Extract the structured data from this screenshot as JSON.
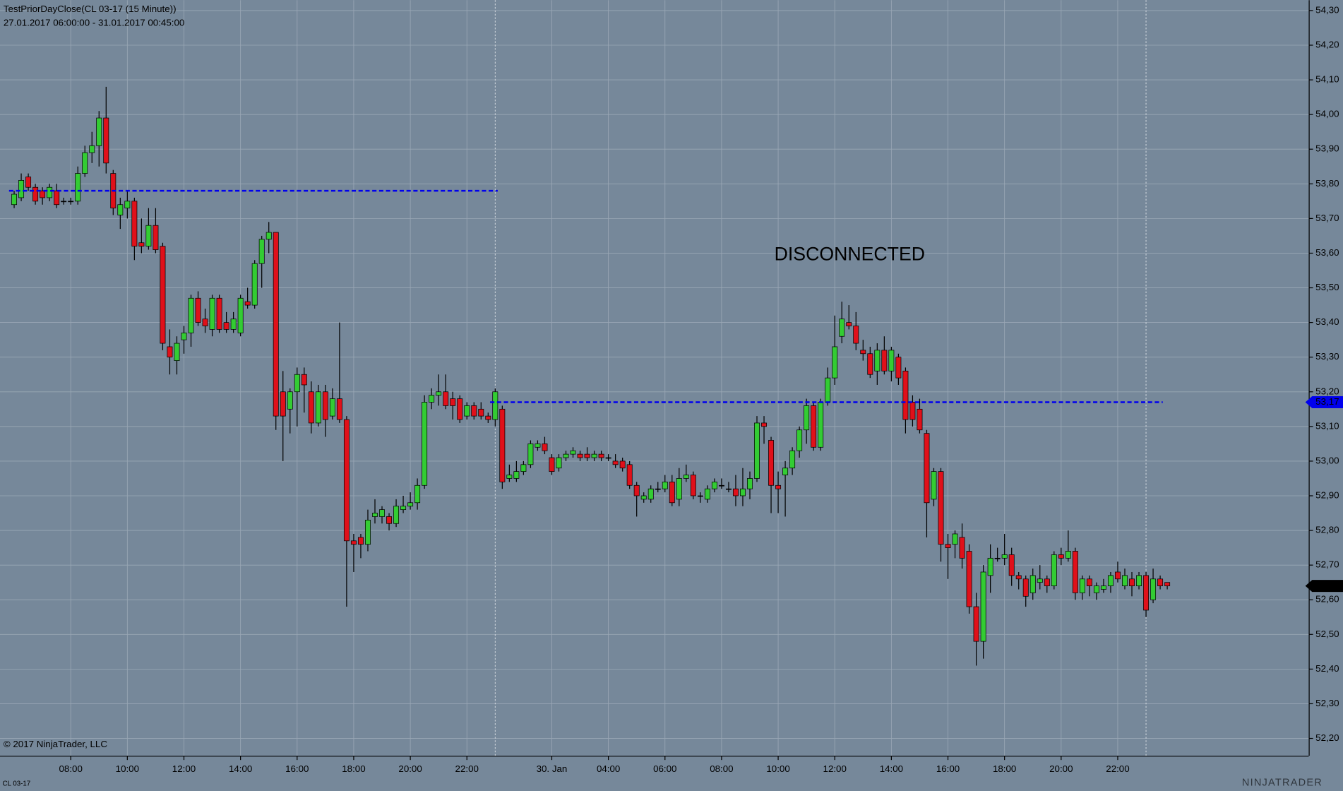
{
  "chart_data": {
    "type": "candlestick",
    "title": "TestPriorDayClose(CL 03-17 (15 Minute))",
    "subtitle": "27.01.2017 06:00:00 - 31.01.2017 00:45:00",
    "annotation": "DISCONNECTED",
    "copyright": "© 2017 NinjaTrader, LLC",
    "instrument": "CL 03-17",
    "logo": "NINJATRADER",
    "up_color": "#33cc33",
    "down_color": "#e0101a",
    "grid": true,
    "open": [
      53.74,
      53.76,
      53.82,
      53.79,
      53.78,
      53.76,
      53.78,
      53.75,
      53.75,
      53.75,
      53.83,
      53.89,
      53.91,
      53.99,
      53.83,
      53.71,
      53.73,
      53.75,
      53.63,
      53.62,
      53.68,
      53.62,
      53.33,
      53.29,
      53.35,
      53.37,
      53.47,
      53.41,
      53.38,
      53.47,
      53.4,
      53.38,
      53.37,
      53.46,
      53.45,
      53.57,
      53.64,
      53.66,
      53.2,
      53.15,
      53.2,
      53.25,
      53.2,
      53.11,
      53.2,
      53.13,
      53.18,
      53.12,
      52.77,
      52.78,
      52.76,
      52.84,
      52.84,
      52.84,
      52.82,
      52.86,
      52.87,
      52.88,
      52.93,
      53.17,
      53.19,
      53.2,
      53.18,
      53.18,
      53.13,
      53.16,
      53.15,
      53.13,
      53.12,
      53.15,
      52.95,
      52.95,
      52.97,
      52.99,
      53.04,
      53.05,
      53.01,
      52.98,
      53.01,
      53.02,
      53.02,
      53.02,
      53.01,
      53.02,
      53.01,
      53.0,
      53.0,
      52.99,
      52.93,
      52.89,
      52.89,
      52.92,
      52.92,
      52.94,
      52.89,
      52.95,
      52.96,
      52.9,
      52.89,
      52.92,
      52.93,
      52.92,
      52.92,
      52.9,
      52.92,
      52.95,
      53.11,
      53.06,
      52.93,
      52.96,
      52.98,
      53.03,
      53.09,
      53.16,
      53.04,
      53.17,
      53.24,
      53.36,
      53.4,
      53.39,
      53.32,
      53.31,
      53.26,
      53.32,
      53.26,
      53.3,
      53.26,
      53.17,
      53.15,
      53.08,
      52.89,
      52.97,
      52.76,
      52.76,
      52.78,
      52.74,
      52.58,
      52.48,
      52.67,
      52.72,
      52.72,
      52.73,
      52.67,
      52.66,
      52.62,
      52.65,
      52.66,
      52.64,
      52.73,
      52.72,
      52.74,
      52.62,
      52.66,
      52.62,
      52.63,
      52.64,
      52.68,
      52.64,
      52.66,
      52.64,
      52.67,
      52.6,
      52.66,
      52.65
    ],
    "high": [
      53.78,
      53.83,
      53.83,
      53.8,
      53.79,
      53.8,
      53.8,
      53.76,
      53.76,
      53.85,
      53.91,
      53.95,
      54.01,
      54.08,
      53.84,
      53.76,
      53.78,
      53.76,
      53.7,
      53.73,
      53.73,
      53.63,
      53.38,
      53.36,
      53.39,
      53.48,
      53.49,
      53.44,
      53.48,
      53.48,
      53.43,
      53.43,
      53.48,
      53.5,
      53.58,
      53.65,
      53.69,
      53.66,
      53.26,
      53.21,
      53.27,
      53.27,
      53.23,
      53.22,
      53.22,
      53.21,
      53.4,
      53.13,
      52.79,
      52.79,
      52.86,
      52.89,
      52.87,
      52.85,
      52.89,
      52.9,
      52.91,
      52.95,
      53.19,
      53.21,
      53.25,
      53.25,
      53.2,
      53.19,
      53.17,
      53.17,
      53.17,
      53.14,
      53.21,
      53.16,
      52.99,
      53.0,
      53.0,
      53.06,
      53.06,
      53.07,
      53.02,
      53.02,
      53.03,
      53.04,
      53.03,
      53.04,
      53.03,
      53.03,
      53.02,
      53.02,
      53.01,
      53.0,
      52.94,
      52.91,
      52.93,
      52.94,
      52.96,
      52.96,
      52.98,
      52.99,
      52.97,
      52.91,
      52.93,
      52.95,
      52.95,
      52.94,
      52.96,
      52.98,
      52.97,
      53.13,
      53.13,
      53.07,
      52.97,
      53.0,
      53.04,
      53.1,
      53.18,
      53.17,
      53.18,
      53.27,
      53.42,
      53.46,
      53.45,
      53.43,
      53.35,
      53.33,
      53.34,
      53.36,
      53.33,
      53.31,
      53.27,
      53.19,
      53.18,
      53.09,
      52.98,
      52.98,
      52.79,
      52.8,
      52.82,
      52.76,
      52.62,
      52.7,
      52.76,
      52.75,
      52.79,
      52.75,
      52.68,
      52.67,
      52.69,
      52.7,
      52.67,
      52.74,
      52.75,
      52.8,
      52.75,
      52.67,
      52.67,
      52.65,
      52.66,
      52.68,
      52.71,
      52.69,
      52.68,
      52.68,
      52.68,
      52.69,
      52.67,
      52.65
    ],
    "low": [
      53.73,
      53.75,
      53.78,
      53.74,
      53.74,
      53.75,
      53.73,
      53.74,
      53.74,
      53.74,
      53.82,
      53.86,
      53.85,
      53.83,
      53.71,
      53.67,
      53.7,
      53.58,
      53.6,
      53.61,
      53.6,
      53.32,
      53.25,
      53.25,
      53.31,
      53.33,
      53.39,
      53.37,
      53.36,
      53.37,
      53.37,
      53.37,
      53.36,
      53.44,
      53.44,
      53.5,
      53.6,
      53.09,
      53.0,
      53.08,
      53.1,
      53.14,
      53.08,
      53.1,
      53.07,
      53.12,
      53.11,
      52.58,
      52.68,
      52.72,
      52.74,
      52.82,
      52.82,
      52.8,
      52.81,
      52.85,
      52.86,
      52.86,
      52.92,
      53.15,
      53.16,
      53.15,
      53.12,
      53.11,
      53.12,
      53.12,
      53.12,
      53.11,
      53.1,
      52.92,
      52.94,
      52.94,
      52.96,
      52.98,
      53.03,
      53.02,
      52.96,
      52.97,
      53.0,
      53.01,
      53.0,
      53.0,
      53.0,
      53.0,
      53.0,
      52.98,
      52.97,
      52.92,
      52.84,
      52.88,
      52.88,
      52.91,
      52.91,
      52.87,
      52.87,
      52.94,
      52.89,
      52.88,
      52.88,
      52.91,
      52.92,
      52.91,
      52.87,
      52.87,
      52.89,
      52.94,
      53.05,
      52.85,
      52.85,
      52.84,
      52.96,
      53.01,
      53.05,
      53.03,
      53.03,
      53.16,
      53.22,
      53.34,
      53.38,
      53.32,
      53.29,
      53.24,
      53.22,
      53.25,
      53.23,
      53.22,
      53.08,
      53.1,
      53.08,
      52.78,
      52.87,
      52.71,
      52.66,
      52.72,
      52.69,
      52.56,
      52.41,
      52.43,
      52.62,
      52.71,
      52.7,
      52.64,
      52.63,
      52.58,
      52.6,
      52.63,
      52.62,
      52.63,
      52.7,
      52.71,
      52.6,
      52.6,
      52.61,
      52.6,
      52.62,
      52.62,
      52.65,
      52.63,
      52.61,
      52.63,
      52.55,
      52.59,
      52.63,
      52.63
    ],
    "close": [
      53.77,
      53.81,
      53.79,
      53.75,
      53.76,
      53.79,
      53.74,
      53.75,
      53.75,
      53.83,
      53.89,
      53.91,
      53.99,
      53.86,
      53.73,
      53.74,
      53.75,
      53.62,
      53.62,
      53.68,
      53.61,
      53.34,
      53.3,
      53.34,
      53.37,
      53.47,
      53.4,
      53.39,
      53.47,
      53.38,
      53.38,
      53.41,
      53.47,
      53.45,
      53.57,
      53.64,
      53.66,
      53.13,
      53.13,
      53.2,
      53.25,
      53.22,
      53.11,
      53.2,
      53.12,
      53.18,
      53.12,
      52.77,
      52.76,
      52.76,
      52.83,
      52.85,
      52.86,
      52.82,
      52.87,
      52.87,
      52.88,
      52.93,
      53.17,
      53.19,
      53.2,
      53.16,
      53.16,
      53.12,
      53.16,
      53.13,
      53.13,
      53.12,
      53.2,
      52.94,
      52.96,
      52.97,
      52.99,
      53.05,
      53.05,
      53.03,
      52.97,
      53.01,
      53.02,
      53.03,
      53.01,
      53.01,
      53.02,
      53.01,
      53.01,
      52.99,
      52.98,
      52.93,
      52.9,
      52.9,
      52.92,
      52.92,
      52.94,
      52.88,
      52.95,
      52.96,
      52.9,
      52.9,
      52.92,
      52.94,
      52.93,
      52.92,
      52.9,
      52.92,
      52.95,
      53.11,
      53.1,
      52.93,
      52.92,
      52.98,
      53.03,
      53.09,
      53.16,
      53.04,
      53.17,
      53.24,
      53.33,
      53.41,
      53.39,
      53.34,
      53.31,
      53.25,
      53.32,
      53.26,
      53.32,
      53.24,
      53.12,
      53.12,
      53.09,
      52.88,
      52.97,
      52.76,
      52.75,
      52.79,
      52.72,
      52.58,
      52.48,
      52.68,
      52.72,
      52.72,
      52.73,
      52.67,
      52.66,
      52.61,
      52.67,
      52.66,
      52.64,
      52.73,
      52.72,
      52.74,
      52.62,
      52.66,
      52.64,
      52.64,
      52.64,
      52.67,
      52.66,
      52.67,
      52.64,
      52.67,
      52.57,
      52.66,
      52.64,
      52.64
    ],
    "xlim": [
      -2,
      183
    ],
    "xticks": [
      {
        "value": 8,
        "label": "08:00"
      },
      {
        "value": 16,
        "label": "10:00"
      },
      {
        "value": 24,
        "label": "12:00"
      },
      {
        "value": 32,
        "label": "14:00"
      },
      {
        "value": 40,
        "label": "16:00"
      },
      {
        "value": 48,
        "label": "18:00"
      },
      {
        "value": 56,
        "label": "20:00"
      },
      {
        "value": 64,
        "label": "22:00"
      },
      {
        "value": 76,
        "label": "30. Jan"
      },
      {
        "value": 84,
        "label": "04:00"
      },
      {
        "value": 92,
        "label": "06:00"
      },
      {
        "value": 100,
        "label": "08:00"
      },
      {
        "value": 108,
        "label": "10:00"
      },
      {
        "value": 116,
        "label": "12:00"
      },
      {
        "value": 124,
        "label": "14:00"
      },
      {
        "value": 132,
        "label": "16:00"
      },
      {
        "value": 140,
        "label": "18:00"
      },
      {
        "value": 148,
        "label": "20:00"
      },
      {
        "value": 156,
        "label": "22:00"
      }
    ],
    "session_breaks": [
      68,
      160
    ],
    "ylim": [
      52.15,
      54.33
    ],
    "yticks": [
      {
        "value": 52.2,
        "label": "52,20"
      },
      {
        "value": 52.3,
        "label": "52,30"
      },
      {
        "value": 52.4,
        "label": "52,40"
      },
      {
        "value": 52.5,
        "label": "52,50"
      },
      {
        "value": 52.6,
        "label": "52,60"
      },
      {
        "value": 52.7,
        "label": "52,70"
      },
      {
        "value": 52.8,
        "label": "52,80"
      },
      {
        "value": 52.9,
        "label": "52,90"
      },
      {
        "value": 53.0,
        "label": "53,00"
      },
      {
        "value": 53.1,
        "label": "53,10"
      },
      {
        "value": 53.2,
        "label": "53,20"
      },
      {
        "value": 53.3,
        "label": "53,30"
      },
      {
        "value": 53.4,
        "label": "53,40"
      },
      {
        "value": 53.5,
        "label": "53,50"
      },
      {
        "value": 53.6,
        "label": "53,60"
      },
      {
        "value": 53.7,
        "label": "53,70"
      },
      {
        "value": 53.8,
        "label": "53,80"
      },
      {
        "value": 53.9,
        "label": "53,90"
      },
      {
        "value": 54.0,
        "label": "54,00"
      },
      {
        "value": 54.1,
        "label": "54,10"
      },
      {
        "value": 54.2,
        "label": "54,20"
      },
      {
        "value": 54.3,
        "label": "54,30"
      }
    ],
    "lines": [
      {
        "value": 53.78,
        "color": "#0000ee",
        "start": 0,
        "end": 68
      },
      {
        "value": 53.17,
        "color": "#0000ee",
        "start": 68,
        "end": 162,
        "label": "53,17"
      }
    ],
    "last_price": {
      "value": 52.64,
      "label": "52,64"
    }
  }
}
